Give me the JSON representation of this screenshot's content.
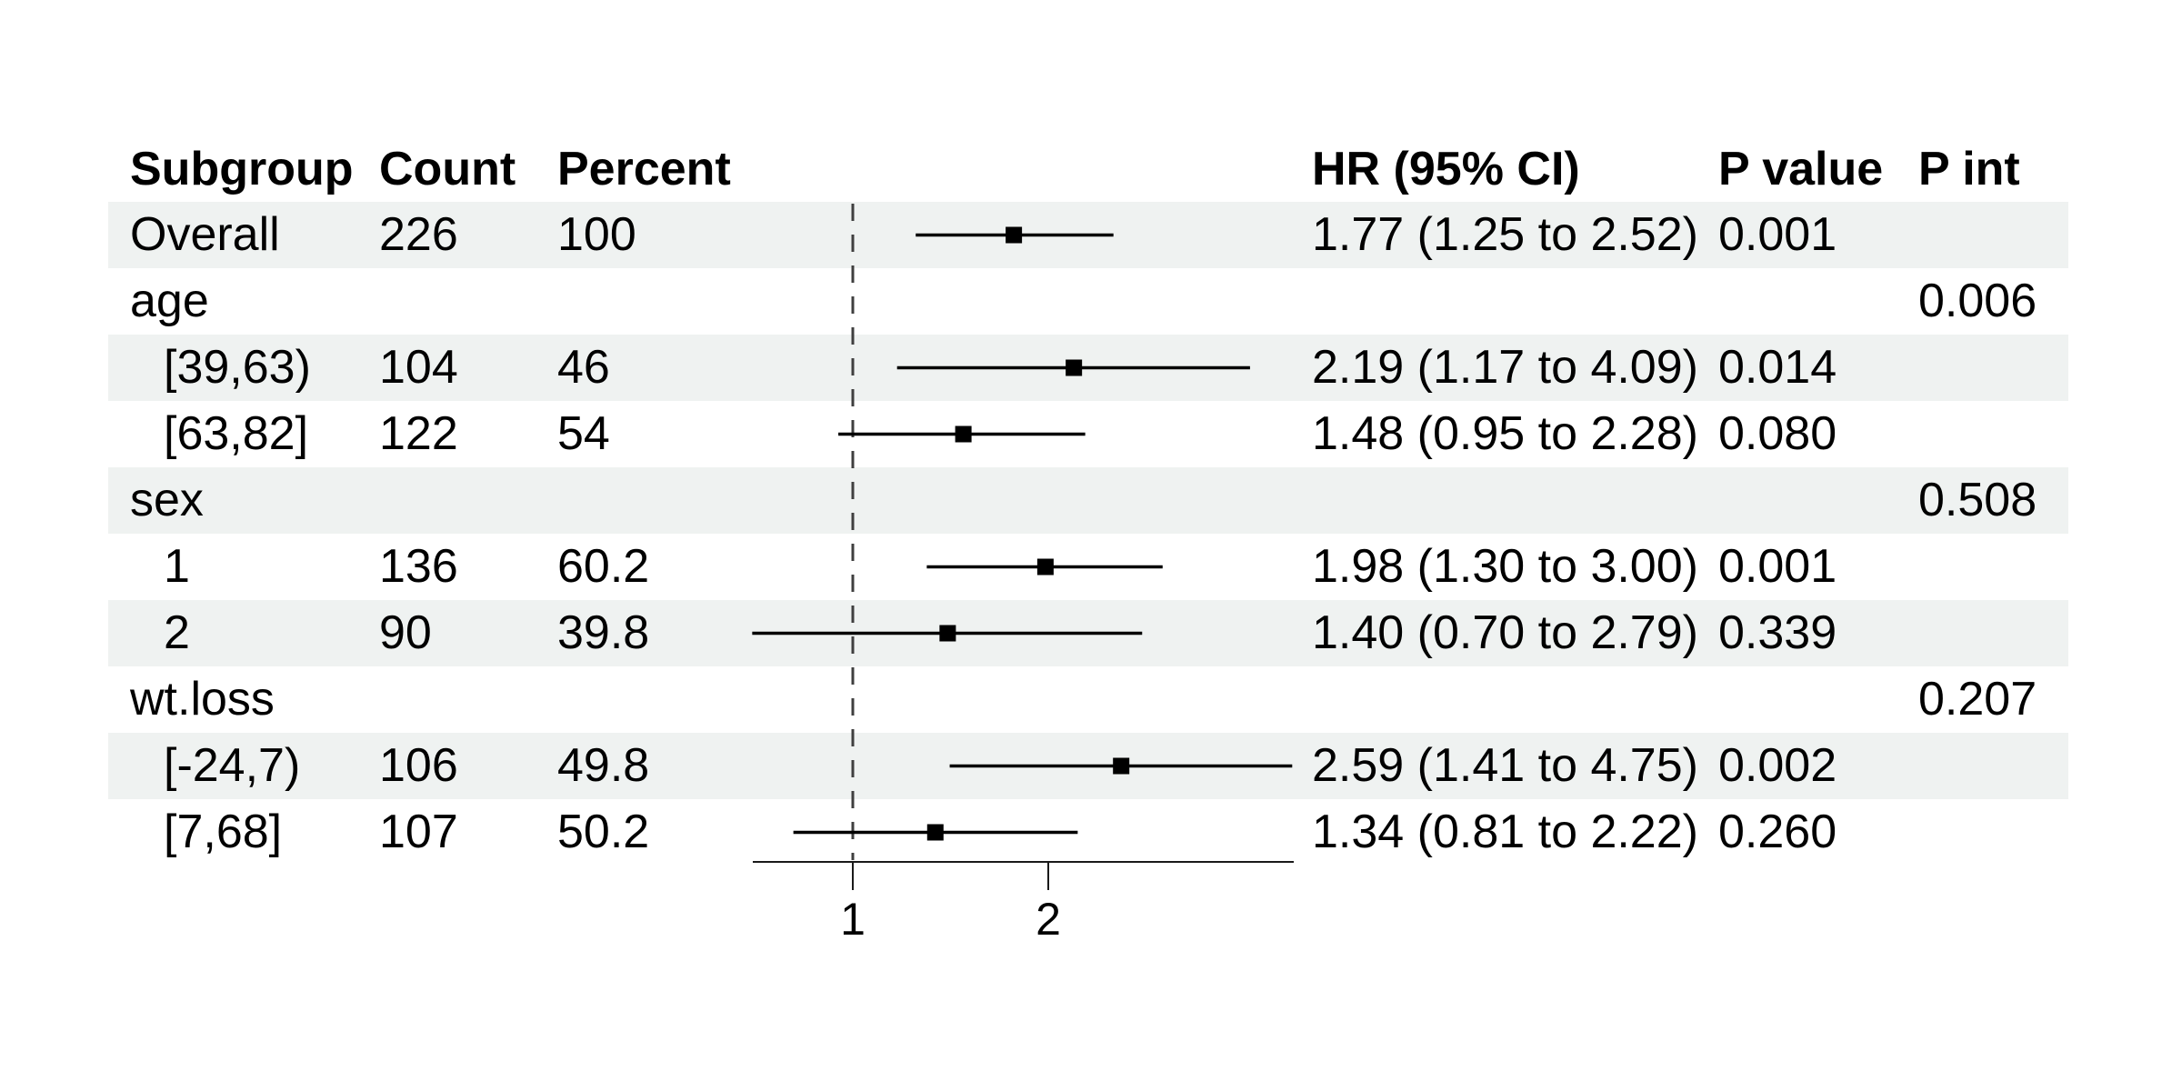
{
  "table": {
    "columns": [
      {
        "label": "Subgroup"
      },
      {
        "label": "Count"
      },
      {
        "label": "Percent"
      },
      {
        "label": "HR (95% CI)"
      },
      {
        "label": "P value"
      },
      {
        "label": "P int"
      }
    ],
    "rows": [
      {
        "subgroup": "Overall",
        "count": "226",
        "percent": "100",
        "hr_ci": "1.77 (1.25 to 2.52)",
        "p_value": "0.001",
        "p_int": "",
        "est": 1.77,
        "lo": 1.25,
        "hi": 2.52
      },
      {
        "subgroup": "age",
        "count": "",
        "percent": "",
        "hr_ci": "",
        "p_value": "",
        "p_int": "0.006"
      },
      {
        "subgroup": "[39,63)",
        "count": "104",
        "percent": "46",
        "hr_ci": "2.19 (1.17 to 4.09)",
        "p_value": "0.014",
        "p_int": "",
        "est": 2.19,
        "lo": 1.17,
        "hi": 4.09
      },
      {
        "subgroup": "[63,82]",
        "count": "122",
        "percent": "54",
        "hr_ci": "1.48 (0.95 to 2.28)",
        "p_value": "0.080",
        "p_int": "",
        "est": 1.48,
        "lo": 0.95,
        "hi": 2.28
      },
      {
        "subgroup": "sex",
        "count": "",
        "percent": "",
        "hr_ci": "",
        "p_value": "",
        "p_int": "0.508"
      },
      {
        "subgroup": "1",
        "count": "136",
        "percent": "60.2",
        "hr_ci": "1.98 (1.30 to 3.00)",
        "p_value": "0.001",
        "p_int": "",
        "est": 1.98,
        "lo": 1.3,
        "hi": 3.0
      },
      {
        "subgroup": "2",
        "count": "90",
        "percent": "39.8",
        "hr_ci": "1.40 (0.70 to 2.79)",
        "p_value": "0.339",
        "p_int": "",
        "est": 1.4,
        "lo": 0.7,
        "hi": 2.79
      },
      {
        "subgroup": "wt.loss",
        "count": "",
        "percent": "",
        "hr_ci": "",
        "p_value": "",
        "p_int": "0.207"
      },
      {
        "subgroup": "[-24,7)",
        "count": "106",
        "percent": "49.8",
        "hr_ci": "2.59 (1.41 to 4.75)",
        "p_value": "0.002",
        "p_int": "",
        "est": 2.59,
        "lo": 1.41,
        "hi": 4.75
      },
      {
        "subgroup": "[7,68]",
        "count": "107",
        "percent": "50.2",
        "hr_ci": "1.34 (0.81 to 2.22)",
        "p_value": "0.260",
        "p_int": "",
        "est": 1.34,
        "lo": 0.81,
        "hi": 2.22
      }
    ]
  },
  "chart_data": {
    "type": "scatter",
    "subtype": "forest-plot",
    "title": "",
    "xlabel": "",
    "ylabel": "",
    "x_scale": "log",
    "x_ticks": [
      "1",
      "2"
    ],
    "reference_line": 1,
    "x_range": [
      0.7,
      4.78
    ],
    "grid": false,
    "legend_position": "none",
    "categories": [
      "Overall",
      "[39,63)",
      "[63,82]",
      "1",
      "2",
      "[-24,7)",
      "[7,68]"
    ],
    "series": [
      {
        "name": "HR (95% CI)",
        "hr": [
          1.77,
          2.19,
          1.48,
          1.98,
          1.4,
          2.59,
          1.34
        ],
        "ci_low": [
          1.25,
          1.17,
          0.95,
          1.3,
          0.7,
          1.41,
          0.81
        ],
        "ci_high": [
          2.52,
          4.09,
          2.28,
          3.0,
          2.79,
          4.75,
          2.22
        ],
        "p_values": [
          "0.001",
          "0.014",
          "0.080",
          "0.001",
          "0.339",
          "0.002",
          "0.260"
        ]
      }
    ],
    "p_interaction": {
      "age": "0.006",
      "sex": "0.508",
      "wt.loss": "0.207"
    }
  },
  "style": {
    "stripe_color": "#eff2f1",
    "marker_color": "#000000",
    "ci_line_color": "#000000",
    "ref_line_color": "#3f3f3f",
    "axis_color": "#1a1a1a"
  }
}
